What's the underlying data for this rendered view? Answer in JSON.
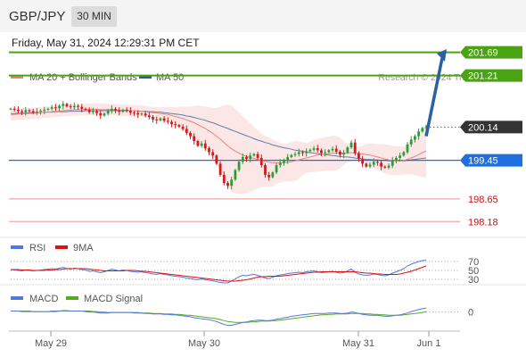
{
  "header": {
    "symbol": "GBP/JPY",
    "timeframe": "30 MIN"
  },
  "timestamp": "Friday, May 31, 2024 12:29:31 PM CET",
  "credit": "Research © 2024 Trading Central",
  "colors": {
    "resistance": "#4aa313",
    "pivot": "#1f6fe0",
    "support": "#f2a7a7",
    "support_text": "#cc1111",
    "last_price": "#333333",
    "arrow": "#2d5fa3",
    "ma20": "#f08080",
    "ma50": "#2f5b94",
    "band": "#f9d3d3",
    "rsi": "#5577dd",
    "rsi_ma": "#dd1111",
    "macd": "#5577dd",
    "macd_signal": "#55aa22",
    "candle_up": "#2a9d3a",
    "candle_down": "#d11a1a"
  },
  "chart_data": [
    {
      "type": "candlestick",
      "name": "price",
      "legend": [
        {
          "label": "MA 20 + Bollinger Bands",
          "color": "#f08080"
        },
        {
          "label": "MA 50",
          "color": "#2f5b94"
        }
      ],
      "x_ticks": [
        "May 29",
        "May 30",
        "May 31",
        "Jun 1"
      ],
      "ylim": [
        198.0,
        201.85
      ],
      "levels": [
        {
          "value": 201.69,
          "label": "201.69",
          "kind": "resistance"
        },
        {
          "value": 201.21,
          "label": "201.21",
          "kind": "resistance"
        },
        {
          "value": 200.14,
          "label": "200.14",
          "kind": "last"
        },
        {
          "value": 199.45,
          "label": "199.45",
          "kind": "pivot"
        },
        {
          "value": 198.65,
          "label": "198.65",
          "kind": "support"
        },
        {
          "value": 198.18,
          "label": "198.18",
          "kind": "support"
        }
      ],
      "close": [
        200.52,
        200.5,
        200.47,
        200.45,
        200.49,
        200.47,
        200.44,
        200.46,
        200.48,
        200.5,
        200.52,
        200.55,
        200.53,
        200.58,
        200.62,
        200.57,
        200.55,
        200.58,
        200.56,
        200.52,
        200.5,
        200.45,
        200.47,
        200.43,
        200.38,
        200.42,
        200.47,
        200.52,
        200.49,
        200.46,
        200.5,
        200.48,
        200.44,
        200.43,
        200.4,
        200.42,
        200.38,
        200.35,
        200.3,
        200.28,
        200.32,
        200.27,
        200.25,
        200.2,
        200.18,
        200.15,
        200.1,
        200.02,
        199.95,
        199.85,
        199.75,
        199.8,
        199.7,
        199.62,
        199.55,
        199.38,
        199.15,
        198.98,
        198.92,
        199.05,
        199.25,
        199.42,
        199.52,
        199.48,
        199.55,
        199.58,
        199.5,
        199.35,
        199.15,
        199.1,
        199.2,
        199.35,
        199.4,
        199.45,
        199.52,
        199.56,
        199.58,
        199.62,
        199.6,
        199.64,
        199.67,
        199.7,
        199.66,
        199.6,
        199.62,
        199.66,
        199.69,
        199.63,
        199.57,
        199.61,
        199.72,
        199.82,
        199.6,
        199.48,
        199.38,
        199.32,
        199.36,
        199.42,
        199.4,
        199.32,
        199.3,
        199.34,
        199.45,
        199.5,
        199.55,
        199.62,
        199.78,
        199.88,
        199.95,
        200.05,
        200.12,
        200.14
      ],
      "ma20": [
        200.4,
        200.4,
        200.41,
        200.41,
        200.42,
        200.42,
        200.43,
        200.43,
        200.44,
        200.45,
        200.45,
        200.46,
        200.47,
        200.47,
        200.48,
        200.49,
        200.49,
        200.5,
        200.5,
        200.5,
        200.51,
        200.51,
        200.51,
        200.51,
        200.5,
        200.5,
        200.5,
        200.5,
        200.5,
        200.49,
        200.49,
        200.49,
        200.48,
        200.48,
        200.47,
        200.47,
        200.46,
        200.45,
        200.44,
        200.43,
        200.42,
        200.41,
        200.4,
        200.38,
        200.36,
        200.34,
        200.32,
        200.29,
        200.26,
        200.23,
        200.19,
        200.15,
        200.11,
        200.06,
        200.01,
        199.95,
        199.89,
        199.82,
        199.75,
        199.69,
        199.64,
        199.6,
        199.56,
        199.53,
        199.51,
        199.49,
        199.47,
        199.45,
        199.43,
        199.41,
        199.4,
        199.4,
        199.4,
        199.4,
        199.41,
        199.42,
        199.44,
        199.46,
        199.48,
        199.5,
        199.52,
        199.54,
        199.56,
        199.57,
        199.58,
        199.59,
        199.6,
        199.6,
        199.6,
        199.6,
        199.6,
        199.61,
        199.6,
        199.59,
        199.58,
        199.57,
        199.56,
        199.54,
        199.52,
        199.5,
        199.48,
        199.46,
        199.45,
        199.44,
        199.44,
        199.45,
        199.47,
        199.5,
        199.53,
        199.57,
        199.61,
        199.64
      ],
      "ma50": [
        200.42,
        200.42,
        200.43,
        200.43,
        200.43,
        200.44,
        200.44,
        200.44,
        200.44,
        200.45,
        200.45,
        200.45,
        200.46,
        200.46,
        200.46,
        200.46,
        200.47,
        200.47,
        200.47,
        200.47,
        200.48,
        200.48,
        200.48,
        200.48,
        200.48,
        200.48,
        200.48,
        200.48,
        200.48,
        200.48,
        200.48,
        200.48,
        200.48,
        200.48,
        200.47,
        200.47,
        200.47,
        200.46,
        200.46,
        200.45,
        200.45,
        200.44,
        200.43,
        200.42,
        200.41,
        200.4,
        200.39,
        200.37,
        200.36,
        200.34,
        200.32,
        200.3,
        200.28,
        200.25,
        200.23,
        200.2,
        200.17,
        200.14,
        200.11,
        200.08,
        200.05,
        200.02,
        199.99,
        199.96,
        199.93,
        199.9,
        199.87,
        199.85,
        199.82,
        199.8,
        199.77,
        199.75,
        199.73,
        199.71,
        199.7,
        199.68,
        199.66,
        199.65,
        199.64,
        199.62,
        199.61,
        199.6,
        199.59,
        199.58,
        199.57,
        199.56,
        199.55,
        199.54,
        199.53,
        199.52,
        199.52,
        199.51,
        199.5,
        199.49,
        199.48,
        199.47,
        199.47,
        199.46,
        199.46,
        199.45,
        199.45,
        199.44,
        199.44,
        199.44,
        199.44,
        199.44,
        199.45,
        199.46,
        199.47,
        199.48,
        199.49,
        199.5
      ],
      "arrow": {
        "from": [
          199.95,
          111
        ],
        "to": [
          201.72,
          116
        ]
      }
    },
    {
      "type": "line",
      "name": "RSI",
      "legend": [
        {
          "label": "RSI",
          "color": "#5577dd"
        },
        {
          "label": "9MA",
          "color": "#dd1111"
        }
      ],
      "ylim": [
        20,
        80
      ],
      "levels": [
        {
          "value": 70,
          "label": "70"
        },
        {
          "value": 50,
          "label": "50"
        },
        {
          "value": 30,
          "label": "30"
        }
      ],
      "rsi": [
        52,
        51,
        50,
        49,
        51,
        50,
        49,
        50,
        51,
        52,
        53,
        54,
        53,
        55,
        57,
        54,
        53,
        55,
        54,
        52,
        51,
        48,
        49,
        47,
        45,
        47,
        50,
        53,
        51,
        49,
        51,
        50,
        48,
        47,
        46,
        47,
        45,
        44,
        42,
        41,
        43,
        41,
        40,
        38,
        37,
        36,
        35,
        33,
        32,
        30,
        29,
        31,
        29,
        28,
        27,
        25,
        23,
        22,
        22,
        26,
        31,
        36,
        39,
        38,
        40,
        41,
        39,
        36,
        33,
        32,
        35,
        38,
        40,
        41,
        43,
        44,
        45,
        46,
        45,
        47,
        48,
        49,
        47,
        45,
        46,
        47,
        48,
        46,
        44,
        45,
        49,
        53,
        46,
        42,
        40,
        39,
        40,
        42,
        41,
        39,
        38,
        40,
        44,
        47,
        50,
        54,
        60,
        64,
        67,
        70,
        72,
        73
      ],
      "ma9": [
        52,
        52,
        52,
        51,
        51,
        51,
        50,
        50,
        50,
        50,
        51,
        51,
        52,
        52,
        53,
        54,
        54,
        54,
        54,
        54,
        54,
        53,
        52,
        51,
        50,
        49,
        49,
        49,
        49,
        49,
        49,
        50,
        50,
        50,
        49,
        48,
        48,
        47,
        46,
        45,
        44,
        43,
        42,
        41,
        40,
        39,
        38,
        37,
        36,
        35,
        34,
        33,
        32,
        31,
        30,
        29,
        28,
        27,
        26,
        26,
        26,
        27,
        28,
        29,
        31,
        33,
        35,
        36,
        36,
        37,
        37,
        37,
        37,
        38,
        39,
        40,
        41,
        42,
        43,
        44,
        45,
        46,
        46,
        47,
        47,
        47,
        47,
        47,
        47,
        47,
        47,
        47,
        47,
        46,
        45,
        44,
        44,
        43,
        42,
        42,
        41,
        41,
        41,
        41,
        42,
        44,
        46,
        48,
        51,
        54,
        57,
        60
      ]
    },
    {
      "type": "line",
      "name": "MACD",
      "legend": [
        {
          "label": "MACD",
          "color": "#5577dd"
        },
        {
          "label": "MACD Signal",
          "color": "#55aa22"
        }
      ],
      "ylim": [
        -0.42,
        0.18
      ],
      "levels": [
        {
          "value": 0,
          "label": "0"
        }
      ],
      "macd": [
        0.02,
        0.02,
        0.02,
        0.01,
        0.01,
        0.01,
        0.01,
        0.01,
        0.01,
        0.01,
        0.01,
        0.02,
        0.02,
        0.02,
        0.03,
        0.03,
        0.02,
        0.02,
        0.02,
        0.02,
        0.01,
        0.0,
        0.0,
        -0.01,
        -0.02,
        -0.02,
        -0.02,
        -0.01,
        -0.01,
        -0.01,
        -0.01,
        -0.01,
        -0.01,
        -0.02,
        -0.02,
        -0.02,
        -0.03,
        -0.03,
        -0.04,
        -0.04,
        -0.04,
        -0.05,
        -0.05,
        -0.06,
        -0.06,
        -0.07,
        -0.08,
        -0.09,
        -0.1,
        -0.12,
        -0.13,
        -0.14,
        -0.15,
        -0.16,
        -0.18,
        -0.2,
        -0.23,
        -0.26,
        -0.28,
        -0.28,
        -0.26,
        -0.24,
        -0.22,
        -0.21,
        -0.19,
        -0.18,
        -0.17,
        -0.17,
        -0.18,
        -0.18,
        -0.17,
        -0.15,
        -0.14,
        -0.12,
        -0.11,
        -0.09,
        -0.08,
        -0.07,
        -0.06,
        -0.05,
        -0.04,
        -0.03,
        -0.03,
        -0.03,
        -0.03,
        -0.02,
        -0.02,
        -0.02,
        -0.03,
        -0.03,
        -0.02,
        0.0,
        -0.01,
        -0.03,
        -0.05,
        -0.06,
        -0.07,
        -0.07,
        -0.07,
        -0.08,
        -0.09,
        -0.09,
        -0.08,
        -0.07,
        -0.06,
        -0.04,
        -0.02,
        0.01,
        0.03,
        0.05,
        0.07,
        0.08
      ],
      "signal": [
        0.02,
        0.02,
        0.02,
        0.02,
        0.02,
        0.02,
        0.01,
        0.01,
        0.01,
        0.01,
        0.01,
        0.01,
        0.01,
        0.02,
        0.02,
        0.02,
        0.02,
        0.02,
        0.02,
        0.02,
        0.02,
        0.02,
        0.01,
        0.01,
        0.0,
        0.0,
        -0.01,
        -0.01,
        -0.01,
        -0.01,
        -0.01,
        -0.01,
        -0.01,
        -0.01,
        -0.01,
        -0.02,
        -0.02,
        -0.02,
        -0.03,
        -0.03,
        -0.03,
        -0.04,
        -0.04,
        -0.04,
        -0.05,
        -0.05,
        -0.06,
        -0.07,
        -0.07,
        -0.08,
        -0.09,
        -0.1,
        -0.11,
        -0.12,
        -0.13,
        -0.14,
        -0.16,
        -0.18,
        -0.2,
        -0.21,
        -0.22,
        -0.22,
        -0.22,
        -0.22,
        -0.21,
        -0.21,
        -0.2,
        -0.19,
        -0.19,
        -0.19,
        -0.18,
        -0.18,
        -0.17,
        -0.16,
        -0.15,
        -0.14,
        -0.13,
        -0.12,
        -0.11,
        -0.1,
        -0.09,
        -0.08,
        -0.07,
        -0.06,
        -0.06,
        -0.05,
        -0.05,
        -0.04,
        -0.04,
        -0.04,
        -0.04,
        -0.03,
        -0.03,
        -0.03,
        -0.03,
        -0.04,
        -0.04,
        -0.05,
        -0.05,
        -0.06,
        -0.06,
        -0.07,
        -0.07,
        -0.07,
        -0.07,
        -0.06,
        -0.05,
        -0.04,
        -0.03,
        -0.02,
        -0.01,
        0.01
      ]
    }
  ]
}
